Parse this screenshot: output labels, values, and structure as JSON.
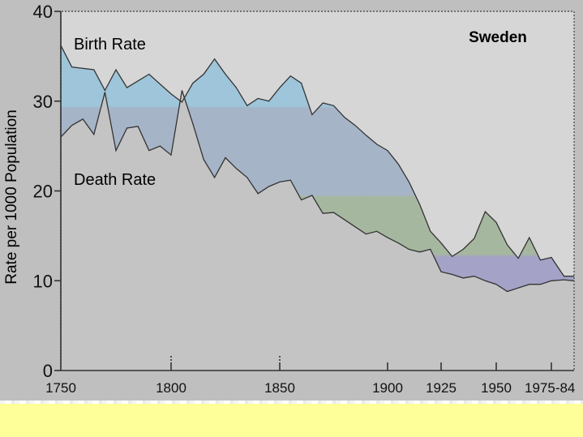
{
  "chart_data": {
    "type": "area",
    "title": "Sweden",
    "ylabel": "Rate per 1000 Population",
    "ylim": [
      0,
      40
    ],
    "yticks": [
      0,
      10,
      20,
      30,
      40
    ],
    "xticks": [
      "1750",
      "1800",
      "1850",
      "1900",
      "1925",
      "1950",
      "1975-84"
    ],
    "series": [
      {
        "name": "Birth Rate",
        "x": [
          1750,
          1755,
          1765,
          1770,
          1775,
          1780,
          1790,
          1800,
          1805,
          1810,
          1815,
          1820,
          1825,
          1830,
          1835,
          1840,
          1845,
          1850,
          1855,
          1860,
          1865,
          1870,
          1875,
          1880,
          1885,
          1890,
          1895,
          1900,
          1905,
          1910,
          1915,
          1920,
          1925,
          1930,
          1935,
          1940,
          1945,
          1950,
          1955,
          1960,
          1965,
          1970,
          1975,
          1980,
          1984
        ],
        "values": [
          36.2,
          33.8,
          33.5,
          31.2,
          33.5,
          31.5,
          33.0,
          30.8,
          29.9,
          32.0,
          33.0,
          34.7,
          33.0,
          31.5,
          29.5,
          30.3,
          30.0,
          31.5,
          32.8,
          32.0,
          28.5,
          29.8,
          29.5,
          28.2,
          27.3,
          26.2,
          25.2,
          24.5,
          23.0,
          21.0,
          18.5,
          15.5,
          14.2,
          12.7,
          13.5,
          14.7,
          17.7,
          16.5,
          14.0,
          12.5,
          14.8,
          12.3,
          12.6,
          10.5,
          10.5
        ]
      },
      {
        "name": "Death Rate",
        "x": [
          1750,
          1755,
          1760,
          1765,
          1770,
          1775,
          1780,
          1785,
          1790,
          1795,
          1800,
          1805,
          1810,
          1815,
          1820,
          1825,
          1830,
          1835,
          1840,
          1845,
          1850,
          1855,
          1860,
          1865,
          1870,
          1875,
          1880,
          1885,
          1890,
          1895,
          1900,
          1905,
          1910,
          1915,
          1920,
          1925,
          1930,
          1935,
          1940,
          1945,
          1950,
          1955,
          1960,
          1965,
          1970,
          1975,
          1980,
          1984
        ],
        "values": [
          26.0,
          27.3,
          28.0,
          26.3,
          31.0,
          24.5,
          27.0,
          27.2,
          24.5,
          25.0,
          24.0,
          31.2,
          27.5,
          23.5,
          21.5,
          23.7,
          22.5,
          21.5,
          19.7,
          20.5,
          21.0,
          21.2,
          19.0,
          19.5,
          17.5,
          17.6,
          16.8,
          16.0,
          15.2,
          15.5,
          14.8,
          14.2,
          13.5,
          13.2,
          13.5,
          11.0,
          10.7,
          10.3,
          10.5,
          10.0,
          9.6,
          8.8,
          9.2,
          9.6,
          9.6,
          10.0,
          10.1,
          10.0
        ]
      }
    ],
    "colors": {
      "background": "#bfbfbf",
      "gap_top": "#9ec5da",
      "gap_upper": "#a6b4c8",
      "gap_mid": "#a6b7a0",
      "gap_lower": "#a4a2c6",
      "below_death": "#c4c4c4",
      "above_birth": "#d6d6d6",
      "line": "#333333",
      "text": "#111111",
      "footer": "#ffff99"
    },
    "legend_placement": "inline labels on curves",
    "grid": false
  }
}
